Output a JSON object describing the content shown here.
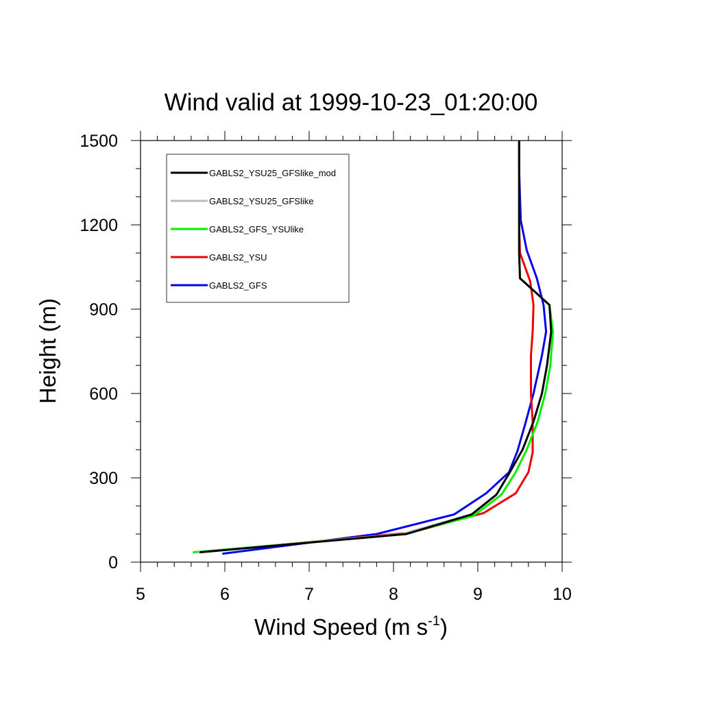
{
  "chart_data": {
    "type": "line",
    "title": "Wind valid at 1999-10-23_01:20:00",
    "xlabel_main": "Wind Speed (m s",
    "xlabel_sup": "-1",
    "xlabel_close": ")",
    "ylabel": "Height (m)",
    "xlim": [
      5,
      10
    ],
    "ylim": [
      0,
      1500
    ],
    "xticks": [
      5,
      6,
      7,
      8,
      9,
      10
    ],
    "xtick_labels": [
      "5",
      "6",
      "7",
      "8",
      "9",
      "10"
    ],
    "yticks": [
      0,
      300,
      600,
      900,
      1200,
      1500
    ],
    "ytick_labels": [
      "0",
      "300",
      "600",
      "900",
      "1200",
      "1500"
    ],
    "grid": false,
    "legend_position": "top-left",
    "series": [
      {
        "name": "GABLS2_YSU25_GFSlike_mod",
        "color": "#000000",
        "points": [
          [
            5.7,
            35
          ],
          [
            8.15,
            100
          ],
          [
            8.93,
            170
          ],
          [
            9.22,
            240
          ],
          [
            9.38,
            320
          ],
          [
            9.53,
            400
          ],
          [
            9.66,
            500
          ],
          [
            9.76,
            600
          ],
          [
            9.82,
            700
          ],
          [
            9.87,
            820
          ],
          [
            9.85,
            915
          ],
          [
            9.5,
            1010
          ],
          [
            9.49,
            1100
          ],
          [
            9.49,
            1200
          ],
          [
            9.49,
            1300
          ],
          [
            9.49,
            1400
          ],
          [
            9.49,
            1500
          ]
        ]
      },
      {
        "name": "GABLS2_YSU25_GFSlike",
        "color": "#bbbbbb",
        "points": [
          [
            5.68,
            35
          ],
          [
            8.1,
            100
          ],
          [
            8.92,
            170
          ],
          [
            9.22,
            240
          ],
          [
            9.38,
            320
          ],
          [
            9.53,
            400
          ],
          [
            9.66,
            500
          ],
          [
            9.76,
            600
          ],
          [
            9.82,
            700
          ],
          [
            9.87,
            820
          ],
          [
            9.85,
            915
          ],
          [
            9.5,
            1010
          ],
          [
            9.49,
            1100
          ],
          [
            9.49,
            1200
          ],
          [
            9.49,
            1300
          ],
          [
            9.49,
            1400
          ],
          [
            9.49,
            1500
          ]
        ]
      },
      {
        "name": "GABLS2_GFS_YSUlike",
        "color": "#00ee00",
        "points": [
          [
            5.62,
            35
          ],
          [
            8.12,
            100
          ],
          [
            8.95,
            165
          ],
          [
            9.28,
            240
          ],
          [
            9.45,
            320
          ],
          [
            9.58,
            400
          ],
          [
            9.71,
            500
          ],
          [
            9.8,
            600
          ],
          [
            9.86,
            700
          ],
          [
            9.89,
            820
          ],
          [
            9.85,
            915
          ],
          [
            9.5,
            1010
          ],
          [
            9.49,
            1100
          ],
          [
            9.49,
            1200
          ],
          [
            9.49,
            1300
          ],
          [
            9.49,
            1400
          ],
          [
            9.49,
            1500
          ]
        ]
      },
      {
        "name": "GABLS2_YSU",
        "color": "#ee0000",
        "points": [
          [
            5.7,
            35
          ],
          [
            8.2,
            105
          ],
          [
            9.07,
            175
          ],
          [
            9.45,
            245
          ],
          [
            9.6,
            320
          ],
          [
            9.65,
            390
          ],
          [
            9.65,
            500
          ],
          [
            9.63,
            600
          ],
          [
            9.63,
            735
          ],
          [
            9.65,
            820
          ],
          [
            9.66,
            915
          ],
          [
            9.62,
            1000
          ],
          [
            9.5,
            1100
          ],
          [
            9.49,
            1200
          ],
          [
            9.49,
            1300
          ],
          [
            9.49,
            1400
          ],
          [
            9.49,
            1500
          ]
        ]
      },
      {
        "name": "GABLS2_GFS",
        "color": "#0000ee",
        "points": [
          [
            5.97,
            30
          ],
          [
            7.8,
            100
          ],
          [
            8.72,
            170
          ],
          [
            9.1,
            245
          ],
          [
            9.37,
            320
          ],
          [
            9.47,
            395
          ],
          [
            9.57,
            500
          ],
          [
            9.66,
            600
          ],
          [
            9.76,
            735
          ],
          [
            9.81,
            820
          ],
          [
            9.78,
            915
          ],
          [
            9.7,
            1010
          ],
          [
            9.58,
            1110
          ],
          [
            9.51,
            1215
          ],
          [
            9.5,
            1300
          ],
          [
            9.49,
            1400
          ],
          [
            9.49,
            1500
          ]
        ]
      }
    ]
  }
}
